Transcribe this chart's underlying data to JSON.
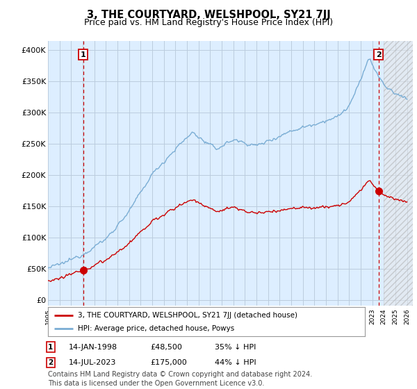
{
  "title": "3, THE COURTYARD, WELSHPOOL, SY21 7JJ",
  "subtitle": "Price paid vs. HM Land Registry's House Price Index (HPI)",
  "hpi_label": "HPI: Average price, detached house, Powys",
  "property_label": "3, THE COURTYARD, WELSHPOOL, SY21 7JJ (detached house)",
  "sale1_date": "14-JAN-1998",
  "sale1_price": 48500,
  "sale1_pct": "35% ↓ HPI",
  "sale2_date": "14-JUL-2023",
  "sale2_price": 175000,
  "sale2_pct": "44% ↓ HPI",
  "hpi_color": "#7aadd4",
  "property_color": "#cc0000",
  "background_color": "#ffffff",
  "plot_bg_color": "#ddeeff",
  "grid_color": "#bbccdd",
  "yticks": [
    0,
    50000,
    100000,
    150000,
    200000,
    250000,
    300000,
    350000,
    400000
  ],
  "ytick_labels": [
    "£0",
    "£50K",
    "£100K",
    "£150K",
    "£200K",
    "£250K",
    "£300K",
    "£350K",
    "£400K"
  ],
  "ylim": [
    -8000,
    415000
  ],
  "xlim_start": 1995.0,
  "xlim_end": 2026.5,
  "sale1_x": 1998.04,
  "sale1_y": 48500,
  "sale2_x": 2023.54,
  "sale2_y": 175000,
  "copyright_text": "Contains HM Land Registry data © Crown copyright and database right 2024.\nThis data is licensed under the Open Government Licence v3.0.",
  "footnote_fontsize": 7.0,
  "title_fontsize": 10.5,
  "subtitle_fontsize": 9.0
}
